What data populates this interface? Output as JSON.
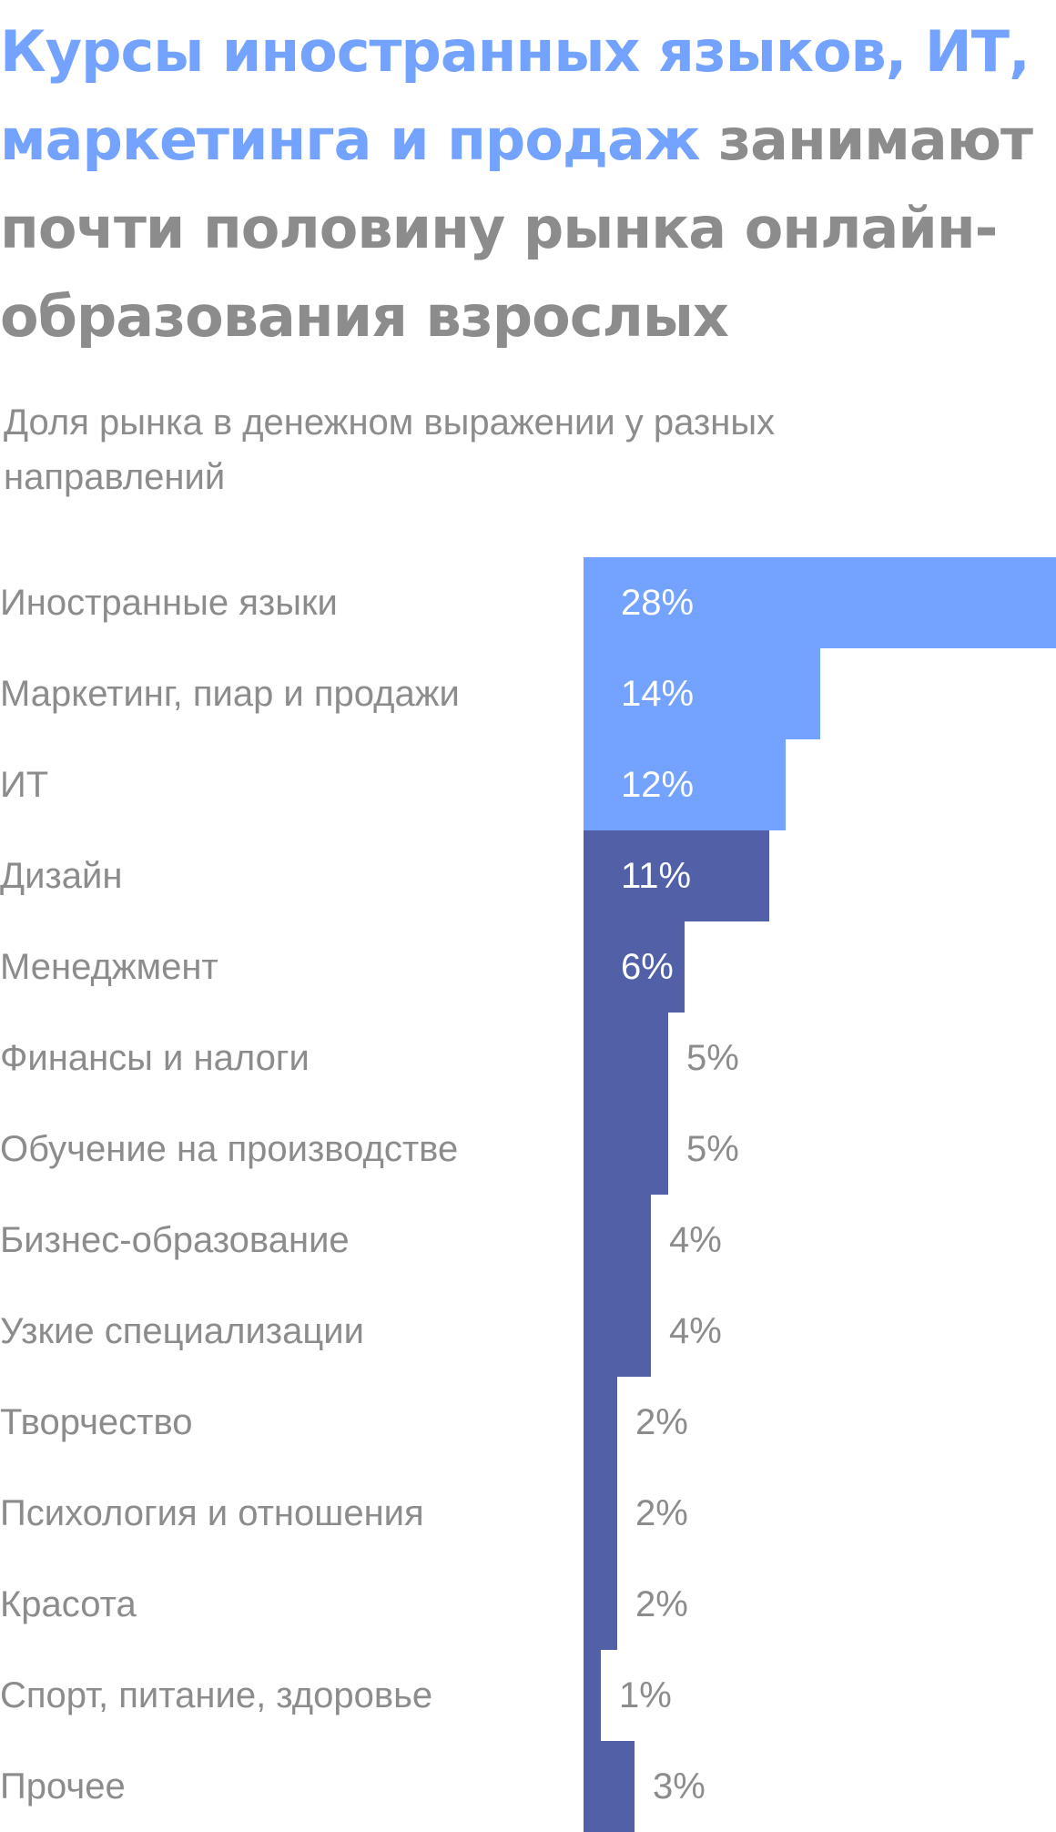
{
  "header": {
    "title_highlight_1": "Курсы иностранных языков, ИТ, маркетинга",
    "title_highlight_2": " и продаж",
    "title_rest": " занимают почти половину рынка онлайн-образования взрослых",
    "subtitle": "Доля рынка в денежном выражении у разных направлений"
  },
  "colors": {
    "highlight": "#74a2ff",
    "other": "#5260a8",
    "text": "#8c8c8c",
    "label_inside": "#ffffff"
  },
  "chart_data": {
    "type": "bar",
    "orientation": "horizontal",
    "unit": "%",
    "categories": [
      "Иностранные языки",
      "Маркетинг, пиар и продажи",
      "ИТ",
      "Дизайн",
      "Менеджмент",
      "Финансы и налоги",
      "Обучение на производстве",
      "Бизнес-образование",
      "Узкие специализации",
      "Творчество",
      "Психология и отношения",
      "Красота",
      "Спорт, питание, здоровье",
      "Прочее"
    ],
    "values": [
      28,
      14,
      12,
      11,
      6,
      5,
      5,
      4,
      4,
      2,
      2,
      2,
      1,
      3
    ],
    "value_labels": [
      "28%",
      "14%",
      "12%",
      "11%",
      "6%",
      "5%",
      "5%",
      "4%",
      "4%",
      "2%",
      "2%",
      "2%",
      "1%",
      "3%"
    ],
    "highlighted": [
      true,
      true,
      true,
      false,
      false,
      false,
      false,
      false,
      false,
      false,
      false,
      false,
      false,
      false
    ],
    "xlim": [
      0,
      28
    ],
    "grid": false,
    "legend": "none"
  }
}
